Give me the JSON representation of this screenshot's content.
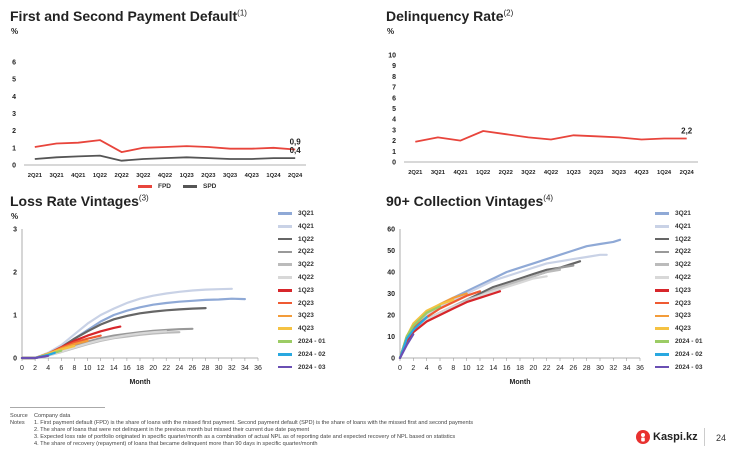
{
  "footer": {
    "source_label": "Source",
    "source_text": "Company data",
    "notes_label": "Notes",
    "notes": [
      "1.  First payment default (FPD) is the share of loans with the missed first payment. Second payment default (SPD) is the share of loans with the missed first and second payments",
      "2.  The share of loans that were not delinquent in the previous month but missed their current due date payment",
      "3.  Expected loss rate of portfolio originated in specific quarter/month as a combination of actual NPL as of reporting date and expected recovery of NPL based on statistics",
      "4.  The share of recovery (repayment) of loans that became delinquent more than 90 days in specific quarter/month"
    ],
    "brand": "Kaspi.kz",
    "page_number": "24"
  },
  "chart_data": [
    {
      "type": "line",
      "title": "First and Second Payment Default",
      "title_note": "(1)",
      "unit": "%",
      "categories": [
        "2Q21",
        "3Q21",
        "4Q21",
        "1Q22",
        "2Q22",
        "3Q22",
        "4Q22",
        "1Q23",
        "2Q23",
        "3Q23",
        "4Q23",
        "1Q24",
        "2Q24"
      ],
      "ylim": [
        0,
        6
      ],
      "yticks": [
        "0",
        "1",
        "2",
        "3",
        "4",
        "5",
        "6"
      ],
      "grid": false,
      "legend_position": "bottom",
      "series": [
        {
          "name": "FPD",
          "color": "#e8453c",
          "values": [
            1.05,
            1.25,
            1.3,
            1.45,
            0.75,
            1.0,
            1.05,
            1.1,
            1.05,
            0.95,
            0.95,
            1.0,
            0.9
          ],
          "end_label": "0,9"
        },
        {
          "name": "SPD",
          "color": "#555555",
          "values": [
            0.35,
            0.45,
            0.5,
            0.55,
            0.25,
            0.35,
            0.4,
            0.45,
            0.4,
            0.35,
            0.35,
            0.4,
            0.4
          ],
          "end_label": "0,4"
        }
      ]
    },
    {
      "type": "line",
      "title": "Delinquency Rate",
      "title_note": "(2)",
      "unit": "%",
      "categories": [
        "2Q21",
        "3Q21",
        "4Q21",
        "1Q22",
        "2Q22",
        "3Q22",
        "4Q22",
        "1Q23",
        "2Q23",
        "3Q23",
        "4Q23",
        "1Q24",
        "2Q24"
      ],
      "ylim": [
        0,
        10
      ],
      "yticks": [
        "0",
        "1",
        "2",
        "3",
        "4",
        "5",
        "6",
        "7",
        "8",
        "9",
        "10"
      ],
      "grid": false,
      "series": [
        {
          "name": "",
          "color": "#e8453c",
          "values": [
            1.9,
            2.3,
            2.0,
            2.9,
            2.6,
            2.3,
            2.1,
            2.5,
            2.4,
            2.3,
            2.1,
            2.2,
            2.2
          ],
          "end_label": "2,2"
        }
      ]
    },
    {
      "type": "line",
      "title": "Loss Rate Vintages",
      "title_note": "(3)",
      "unit": "%",
      "xlabel": "Month",
      "xlim": [
        0,
        36
      ],
      "ylim": [
        0,
        3
      ],
      "xticks": [
        "0",
        "2",
        "4",
        "6",
        "8",
        "10",
        "12",
        "14",
        "16",
        "18",
        "20",
        "22",
        "24",
        "26",
        "28",
        "30",
        "32",
        "34",
        "36"
      ],
      "yticks": [
        "0",
        "1",
        "2",
        "3"
      ],
      "grid": false,
      "legend_position": "right",
      "series": [
        {
          "name": "3Q21",
          "color": "#8fa9d6",
          "x": [
            0,
            2,
            4,
            6,
            8,
            10,
            12,
            14,
            16,
            18,
            20,
            22,
            24,
            26,
            28,
            30,
            32,
            34
          ],
          "values": [
            0,
            0,
            0.1,
            0.25,
            0.45,
            0.65,
            0.85,
            1.0,
            1.1,
            1.18,
            1.24,
            1.28,
            1.31,
            1.33,
            1.35,
            1.36,
            1.38,
            1.37
          ]
        },
        {
          "name": "4Q21",
          "color": "#c9d2e6",
          "x": [
            0,
            2,
            4,
            6,
            8,
            10,
            12,
            14,
            16,
            18,
            20,
            22,
            24,
            26,
            28,
            30,
            32
          ],
          "values": [
            0,
            0,
            0.12,
            0.3,
            0.55,
            0.8,
            1.0,
            1.15,
            1.28,
            1.38,
            1.45,
            1.5,
            1.54,
            1.57,
            1.59,
            1.6,
            1.61
          ]
        },
        {
          "name": "1Q22",
          "color": "#666666",
          "x": [
            0,
            2,
            4,
            6,
            8,
            10,
            12,
            14,
            16,
            18,
            20,
            22,
            24,
            26,
            28
          ],
          "values": [
            0,
            0,
            0.1,
            0.25,
            0.45,
            0.62,
            0.78,
            0.9,
            0.98,
            1.04,
            1.08,
            1.11,
            1.13,
            1.15,
            1.16
          ]
        },
        {
          "name": "2Q22",
          "color": "#999999",
          "x": [
            0,
            2,
            4,
            6,
            8,
            10,
            12,
            14,
            16,
            18,
            20,
            22,
            24,
            26
          ],
          "values": [
            0,
            0,
            0.07,
            0.17,
            0.28,
            0.38,
            0.46,
            0.52,
            0.56,
            0.6,
            0.63,
            0.65,
            0.67,
            0.68
          ]
        },
        {
          "name": "3Q22",
          "color": "#bbbbbb",
          "x": [
            0,
            2,
            4,
            6,
            8,
            10,
            12,
            14,
            16,
            18,
            20,
            22,
            24
          ],
          "values": [
            0,
            0,
            0.06,
            0.14,
            0.23,
            0.32,
            0.4,
            0.46,
            0.5,
            0.54,
            0.57,
            0.59,
            0.6
          ]
        },
        {
          "name": "4Q22",
          "color": "#d8d8d8",
          "x": [
            0,
            2,
            4,
            6,
            8,
            10,
            12,
            14,
            16,
            18,
            20,
            22
          ],
          "values": [
            0,
            0,
            0.06,
            0.15,
            0.25,
            0.34,
            0.42,
            0.48,
            0.53,
            0.57,
            0.6,
            0.62
          ]
        },
        {
          "name": "1Q23",
          "color": "#d7262b",
          "x": [
            0,
            2,
            4,
            6,
            8,
            10,
            12,
            14,
            15
          ],
          "values": [
            0,
            0,
            0.1,
            0.25,
            0.4,
            0.52,
            0.62,
            0.7,
            0.73
          ]
        },
        {
          "name": "2Q23",
          "color": "#ef5a32",
          "x": [
            0,
            2,
            4,
            6,
            8,
            10,
            12
          ],
          "values": [
            0,
            0,
            0.1,
            0.24,
            0.36,
            0.45,
            0.52
          ]
        },
        {
          "name": "3Q23",
          "color": "#f39c3a",
          "x": [
            0,
            2,
            4,
            6,
            8,
            10
          ],
          "values": [
            0,
            0,
            0.1,
            0.22,
            0.32,
            0.4
          ]
        },
        {
          "name": "4Q23",
          "color": "#f5c242",
          "x": [
            0,
            2,
            4,
            6,
            8
          ],
          "values": [
            0,
            0,
            0.1,
            0.2,
            0.28
          ]
        },
        {
          "name": "2024 - 01",
          "color": "#9ccc65",
          "x": [
            0,
            2,
            4,
            6
          ],
          "values": [
            0,
            0,
            0.08,
            0.17
          ]
        },
        {
          "name": "2024 - 02",
          "color": "#29a8e0",
          "x": [
            0,
            2,
            4,
            5
          ],
          "values": [
            0,
            0,
            0.07,
            0.12
          ]
        },
        {
          "name": "2024 - 03",
          "color": "#6a4fb3",
          "x": [
            0,
            2,
            4
          ],
          "values": [
            0,
            0,
            0.05
          ]
        }
      ]
    },
    {
      "type": "line",
      "title": "90+ Collection Vintages",
      "title_note": "(4)",
      "unit": "%",
      "xlabel": "Month",
      "xlim": [
        0,
        36
      ],
      "ylim": [
        0,
        60
      ],
      "xticks": [
        "0",
        "2",
        "4",
        "6",
        "8",
        "10",
        "12",
        "14",
        "16",
        "18",
        "20",
        "22",
        "24",
        "26",
        "28",
        "30",
        "32",
        "34",
        "36"
      ],
      "yticks": [
        "0",
        "10",
        "20",
        "30",
        "40",
        "50",
        "60"
      ],
      "grid": false,
      "legend_position": "right",
      "series": [
        {
          "name": "3Q21",
          "color": "#8fa9d6",
          "x": [
            0,
            1,
            2,
            4,
            6,
            8,
            10,
            12,
            14,
            16,
            18,
            20,
            22,
            24,
            26,
            28,
            30,
            32,
            33
          ],
          "values": [
            0,
            10,
            15,
            21,
            25,
            28,
            31,
            34,
            37,
            40,
            42,
            44,
            46,
            48,
            50,
            52,
            53,
            54,
            55
          ]
        },
        {
          "name": "4Q21",
          "color": "#c9d2e6",
          "x": [
            0,
            1,
            2,
            4,
            6,
            8,
            10,
            12,
            14,
            16,
            18,
            20,
            22,
            24,
            26,
            28,
            30,
            31
          ],
          "values": [
            0,
            9,
            14,
            20,
            24,
            27,
            30,
            33,
            36,
            38,
            40,
            42,
            44,
            45,
            46,
            47,
            48,
            48
          ]
        },
        {
          "name": "1Q22",
          "color": "#666666",
          "x": [
            0,
            1,
            2,
            4,
            6,
            8,
            10,
            12,
            14,
            16,
            18,
            20,
            22,
            24,
            26,
            27
          ],
          "values": [
            0,
            8,
            13,
            18,
            21,
            24,
            27,
            30,
            33,
            35,
            37,
            39,
            41,
            42,
            44,
            45
          ]
        },
        {
          "name": "2Q22",
          "color": "#999999",
          "x": [
            0,
            1,
            2,
            4,
            6,
            8,
            10,
            12,
            14,
            16,
            18,
            20,
            22,
            24,
            26
          ],
          "values": [
            0,
            8,
            13,
            18,
            21,
            24,
            27,
            29,
            32,
            34,
            36,
            38,
            40,
            42,
            43
          ]
        },
        {
          "name": "3Q22",
          "color": "#bbbbbb",
          "x": [
            0,
            1,
            2,
            4,
            6,
            8,
            10,
            12,
            14,
            16,
            18,
            20,
            22,
            24
          ],
          "values": [
            0,
            8,
            13,
            18,
            21,
            24,
            27,
            29,
            32,
            34,
            36,
            38,
            40,
            41
          ]
        },
        {
          "name": "4Q22",
          "color": "#d8d8d8",
          "x": [
            0,
            1,
            2,
            4,
            6,
            8,
            10,
            12,
            14,
            16,
            18,
            20,
            22
          ],
          "values": [
            0,
            8,
            13,
            18,
            21,
            24,
            26,
            29,
            31,
            33,
            35,
            37,
            38
          ]
        },
        {
          "name": "1Q23",
          "color": "#d7262b",
          "x": [
            0,
            1,
            2,
            4,
            6,
            8,
            10,
            12,
            14,
            15
          ],
          "values": [
            0,
            8,
            12,
            17,
            20,
            23,
            26,
            28,
            30,
            31
          ]
        },
        {
          "name": "2Q23",
          "color": "#ef5a32",
          "x": [
            0,
            1,
            2,
            4,
            6,
            8,
            10,
            12
          ],
          "values": [
            0,
            9,
            14,
            19,
            23,
            26,
            29,
            31
          ]
        },
        {
          "name": "3Q23",
          "color": "#f39c3a",
          "x": [
            0,
            1,
            2,
            4,
            6,
            8,
            10
          ],
          "values": [
            0,
            10,
            15,
            21,
            25,
            28,
            30
          ]
        },
        {
          "name": "4Q23",
          "color": "#f5c242",
          "x": [
            0,
            1,
            2,
            4,
            6,
            8
          ],
          "values": [
            0,
            10,
            16,
            22,
            25,
            27
          ]
        },
        {
          "name": "2024 - 01",
          "color": "#9ccc65",
          "x": [
            0,
            1,
            2,
            4,
            6
          ],
          "values": [
            0,
            10,
            15,
            21,
            24
          ]
        },
        {
          "name": "2024 - 02",
          "color": "#29a8e0",
          "x": [
            0,
            1,
            2,
            3,
            4
          ],
          "values": [
            0,
            9,
            13,
            16,
            19
          ]
        },
        {
          "name": "2024 - 03",
          "color": "#6a4fb3",
          "x": [
            0,
            1,
            2
          ],
          "values": [
            0,
            6,
            11
          ]
        }
      ]
    }
  ]
}
